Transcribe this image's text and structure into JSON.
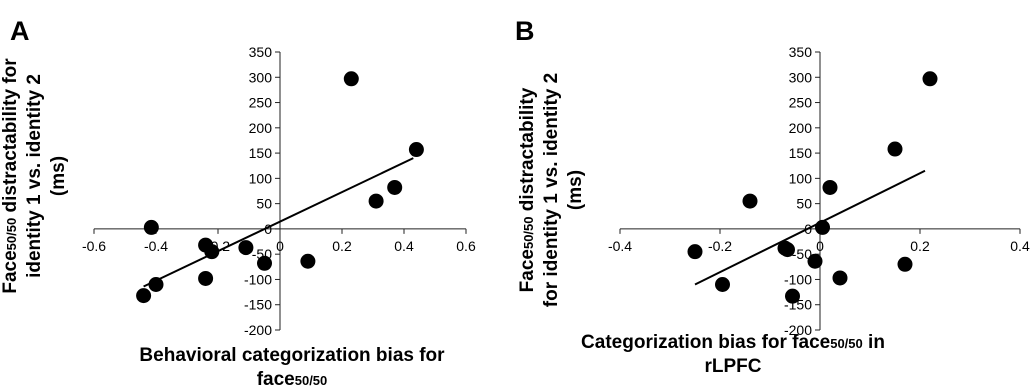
{
  "chart_data": [
    {
      "type": "scatter",
      "panel_label": "A",
      "xlabel": "Behavioral categorization bias for face50/50",
      "ylabel": "Face50/50 distractability for identity 1 vs. identity 2 (ms)",
      "xlabel_parts": [
        [
          {
            "t": "Behavioral categorization bias for",
            "sub": false
          }
        ],
        [
          {
            "t": "face",
            "sub": false
          },
          {
            "t": "50/50",
            "sub": true
          }
        ]
      ],
      "ylabel_parts": [
        [
          {
            "t": "Face",
            "sub": false
          },
          {
            "t": "50/50",
            "sub": true
          },
          {
            "t": " distractability  for",
            "sub": false
          }
        ],
        [
          {
            "t": "identity 1 vs. identity 2",
            "sub": false
          }
        ],
        [
          {
            "t": "(ms)",
            "sub": false
          }
        ]
      ],
      "xlim": [
        -0.6,
        0.6
      ],
      "ylim": [
        -200,
        350
      ],
      "xticks": [
        "-0.6",
        "-0.4",
        "-0.2",
        "0",
        "0.2",
        "0.4",
        "0.6"
      ],
      "yticks": [
        "-200",
        "-150",
        "-100",
        "-50",
        "0",
        "50",
        "100",
        "150",
        "200",
        "250",
        "300",
        "350"
      ],
      "points": [
        {
          "x": -0.44,
          "y": -132
        },
        {
          "x": -0.4,
          "y": -110
        },
        {
          "x": -0.415,
          "y": 3
        },
        {
          "x": -0.24,
          "y": -32
        },
        {
          "x": -0.22,
          "y": -45
        },
        {
          "x": -0.24,
          "y": -98
        },
        {
          "x": -0.11,
          "y": -37
        },
        {
          "x": -0.05,
          "y": -68
        },
        {
          "x": 0.09,
          "y": -64
        },
        {
          "x": 0.23,
          "y": 297
        },
        {
          "x": 0.31,
          "y": 55
        },
        {
          "x": 0.37,
          "y": 82
        },
        {
          "x": 0.44,
          "y": 157
        }
      ],
      "trendline": [
        {
          "x": -0.44,
          "y": -114
        },
        {
          "x": 0.43,
          "y": 140
        }
      ]
    },
    {
      "type": "scatter",
      "panel_label": "B",
      "xlabel": "Categorization bias for face50/50 in rLPFC",
      "ylabel": "Face50/50 distractability for identity 1 vs. identity 2 (ms)",
      "xlabel_parts": [
        [
          {
            "t": "Categorization bias for face",
            "sub": false
          },
          {
            "t": "50/50",
            "sub": true
          },
          {
            "t": " in",
            "sub": false
          }
        ],
        [
          {
            "t": "rLPFC",
            "sub": false
          }
        ]
      ],
      "ylabel_parts": [
        [
          {
            "t": "Face",
            "sub": false
          },
          {
            "t": "50/50",
            "sub": true
          },
          {
            "t": " distractability",
            "sub": false
          }
        ],
        [
          {
            "t": "for identity 1 vs. identity 2",
            "sub": false
          }
        ],
        [
          {
            "t": "(ms)",
            "sub": false
          }
        ]
      ],
      "xlim": [
        -0.4,
        0.4
      ],
      "ylim": [
        -200,
        350
      ],
      "xticks": [
        "-0.4",
        "-0.2",
        "0",
        "0.2",
        "0.4"
      ],
      "yticks": [
        "-200",
        "-150",
        "-100",
        "-50",
        "0",
        "50",
        "100",
        "150",
        "200",
        "250",
        "300",
        "350"
      ],
      "points": [
        {
          "x": -0.25,
          "y": -45
        },
        {
          "x": -0.195,
          "y": -110
        },
        {
          "x": -0.14,
          "y": 55
        },
        {
          "x": -0.07,
          "y": -38
        },
        {
          "x": -0.065,
          "y": -41
        },
        {
          "x": -0.055,
          "y": -133
        },
        {
          "x": -0.01,
          "y": -64
        },
        {
          "x": 0.005,
          "y": 3
        },
        {
          "x": 0.02,
          "y": 82
        },
        {
          "x": 0.04,
          "y": -97
        },
        {
          "x": 0.15,
          "y": 158
        },
        {
          "x": 0.17,
          "y": -70
        },
        {
          "x": 0.22,
          "y": 297
        }
      ],
      "trendline": [
        {
          "x": -0.25,
          "y": -110
        },
        {
          "x": 0.21,
          "y": 115
        }
      ]
    }
  ]
}
